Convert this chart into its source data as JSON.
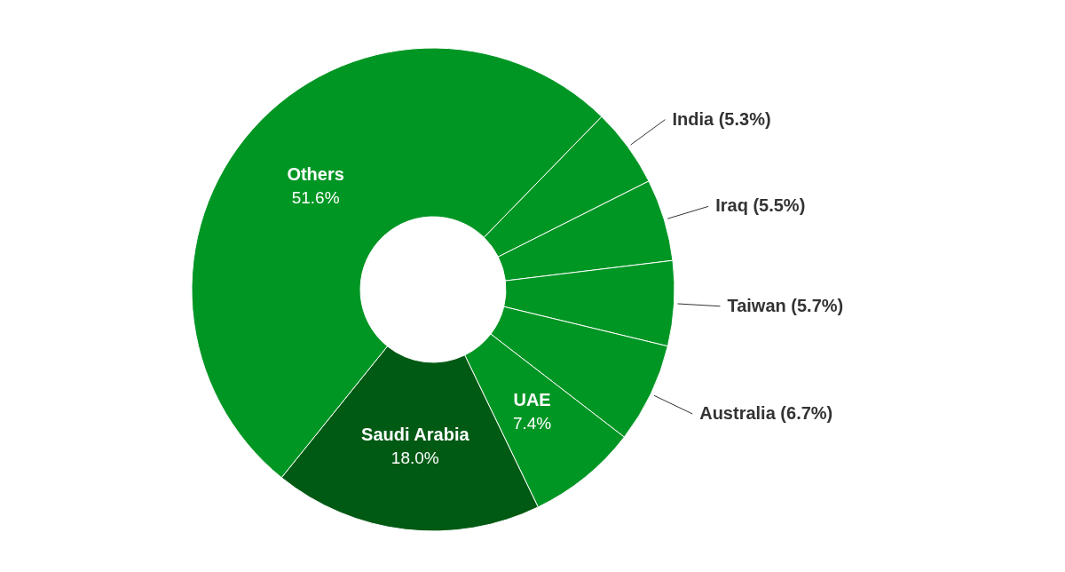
{
  "chart_data": {
    "type": "donut",
    "categories": [
      "India",
      "Iraq",
      "Taiwan",
      "Australia",
      "UAE",
      "Saudi Arabia",
      "Others"
    ],
    "values": [
      5.3,
      5.5,
      5.7,
      6.7,
      7.4,
      18.0,
      51.6
    ],
    "colors": [
      "#009624",
      "#009624",
      "#009624",
      "#009624",
      "#009624",
      "#005a14",
      "#009624"
    ],
    "value_labels": [
      "(5.3%)",
      "(5.5%)",
      "(5.7%)",
      "(6.7%)",
      "7.4%",
      "18.0%",
      "51.6%"
    ]
  }
}
